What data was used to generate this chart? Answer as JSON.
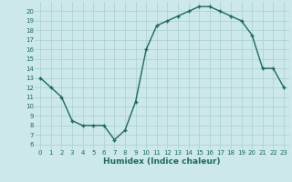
{
  "x": [
    0,
    1,
    2,
    3,
    4,
    5,
    6,
    7,
    8,
    9,
    10,
    11,
    12,
    13,
    14,
    15,
    16,
    17,
    18,
    19,
    20,
    21,
    22,
    23
  ],
  "y": [
    13,
    12,
    11,
    8.5,
    8,
    8,
    8,
    6.5,
    7.5,
    10.5,
    16,
    18.5,
    19,
    19.5,
    20,
    20.5,
    20.5,
    20,
    19.5,
    19,
    17.5,
    14,
    14,
    12
  ],
  "line_color": "#1a6b5a",
  "marker": "+",
  "marker_size": 3,
  "bg_color": "#cce8e8",
  "grid_color": "#aacfcf",
  "xlabel": "Humidex (Indice chaleur)",
  "xlim": [
    -0.5,
    23.5
  ],
  "ylim": [
    5.5,
    21
  ],
  "yticks": [
    6,
    7,
    8,
    9,
    10,
    11,
    12,
    13,
    14,
    15,
    16,
    17,
    18,
    19,
    20
  ],
  "xticks": [
    0,
    1,
    2,
    3,
    4,
    5,
    6,
    7,
    8,
    9,
    10,
    11,
    12,
    13,
    14,
    15,
    16,
    17,
    18,
    19,
    20,
    21,
    22,
    23
  ],
  "tick_fontsize": 5,
  "xlabel_fontsize": 6.5,
  "line_width": 1.0
}
